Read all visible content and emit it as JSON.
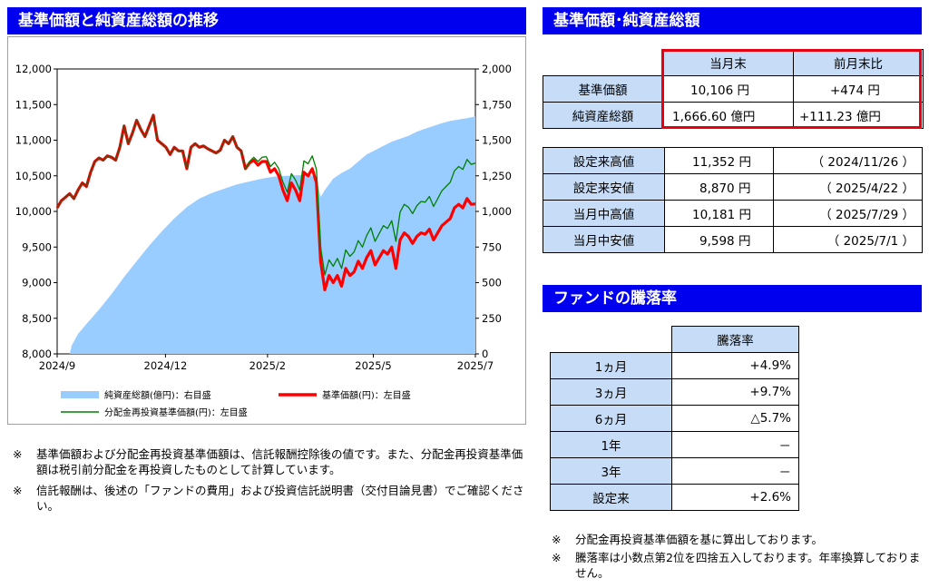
{
  "left_title": "基準価額と純資産総額の推移",
  "right_title": "基準価額･純資産総額",
  "perf_title": "ファンドの騰落率",
  "nav_table": {
    "col1": "当月末",
    "col2": "前月末比",
    "rows": [
      {
        "label": "基準価額",
        "value": "10,106 円",
        "change": "+474 円"
      },
      {
        "label": "純資産総額",
        "value": "1,666.60 億円",
        "change": "+111.23 億円"
      }
    ]
  },
  "highlight_color": "#e60012",
  "hilo_table": [
    {
      "label": "設定来高値",
      "value": "11,352 円",
      "date": "（ 2024/11/26 ）"
    },
    {
      "label": "設定来安値",
      "value": "8,870 円",
      "date": "（ 2025/4/22 ）"
    },
    {
      "label": "当月中高値",
      "value": "10,181 円",
      "date": "（ 2025/7/29 ）"
    },
    {
      "label": "当月中安値",
      "value": "9,598 円",
      "date": "（ 2025/7/1 ）"
    }
  ],
  "perf_table": {
    "header": "騰落率",
    "rows": [
      {
        "label": "1ヵ月",
        "value": "+4.9%"
      },
      {
        "label": "3ヵ月",
        "value": "+9.7%"
      },
      {
        "label": "6ヵ月",
        "value": "△5.7%"
      },
      {
        "label": "1年",
        "value": "－"
      },
      {
        "label": "3年",
        "value": "－"
      },
      {
        "label": "設定来",
        "value": "+2.6%"
      }
    ]
  },
  "notes_left": [
    {
      "mark": "※",
      "text": "基準価額および分配金再投資基準価額は、信託報酬控除後の値です。また、分配金再投資基準価額は税引前分配金を再投資したものとして計算しています。"
    },
    {
      "mark": "※",
      "text": "信託報酬は、後述の「ファンドの費用」および投資信託説明書（交付目論見書）でご確認ください。"
    }
  ],
  "notes_right": [
    {
      "mark": "※",
      "text": "分配金再投資基準価額を基に算出しております。"
    },
    {
      "mark": "※",
      "text": "騰落率は小数点第2位を四捨五入しております。年率換算しておりません。"
    }
  ],
  "chart_data": {
    "type": "line",
    "x_start": "2024/9",
    "x_end": "2025/7",
    "xticks": [
      {
        "label": "2024/9",
        "t": 0
      },
      {
        "label": "2024/12",
        "t": 0.259
      },
      {
        "label": "2025/2",
        "t": 0.503
      },
      {
        "label": "2025/5",
        "t": 0.756
      },
      {
        "label": "2025/7",
        "t": 1
      }
    ],
    "y_left": {
      "min": 8000,
      "max": 12000,
      "ticks": [
        "12,000",
        "11,500",
        "11,000",
        "10,500",
        "10,000",
        "9,500",
        "9,000",
        "8,500",
        "8,000"
      ]
    },
    "y_right": {
      "min": 0,
      "max": 2000,
      "ticks": [
        "2,000",
        "1,750",
        "1,500",
        "1,250",
        "1,000",
        "750",
        "500",
        "250",
        "0"
      ]
    },
    "colors": {
      "area": "#99ccff",
      "nav": "#ff0000",
      "reinvest": "#008000",
      "nav_shadow": "#6b3a10"
    },
    "legend": {
      "area": "純資産総額(億円)：右目盛",
      "nav": "基準価額(円)：左目盛",
      "reinvest": "分配金再投資基準価額(円)：左目盛"
    },
    "series": [
      {
        "name": "基準価額(円)：左目盛",
        "axis": "left",
        "points": [
          [
            0,
            10050
          ],
          [
            0.01,
            10150
          ],
          [
            0.02,
            10200
          ],
          [
            0.03,
            10250
          ],
          [
            0.04,
            10180
          ],
          [
            0.05,
            10300
          ],
          [
            0.06,
            10400
          ],
          [
            0.07,
            10350
          ],
          [
            0.08,
            10550
          ],
          [
            0.09,
            10700
          ],
          [
            0.1,
            10750
          ],
          [
            0.11,
            10720
          ],
          [
            0.12,
            10780
          ],
          [
            0.13,
            10760
          ],
          [
            0.14,
            10720
          ],
          [
            0.15,
            10900
          ],
          [
            0.16,
            11200
          ],
          [
            0.17,
            10950
          ],
          [
            0.18,
            11100
          ],
          [
            0.19,
            11280
          ],
          [
            0.2,
            11150
          ],
          [
            0.21,
            11050
          ],
          [
            0.22,
            11200
          ],
          [
            0.23,
            11352
          ],
          [
            0.24,
            11000
          ],
          [
            0.25,
            10950
          ],
          [
            0.26,
            10900
          ],
          [
            0.27,
            10800
          ],
          [
            0.28,
            10900
          ],
          [
            0.29,
            10850
          ],
          [
            0.3,
            10850
          ],
          [
            0.31,
            10600
          ],
          [
            0.32,
            10900
          ],
          [
            0.33,
            10950
          ],
          [
            0.34,
            10900
          ],
          [
            0.35,
            10920
          ],
          [
            0.36,
            10880
          ],
          [
            0.37,
            10850
          ],
          [
            0.38,
            10820
          ],
          [
            0.39,
            10860
          ],
          [
            0.4,
            11000
          ],
          [
            0.41,
            10950
          ],
          [
            0.42,
            11050
          ],
          [
            0.43,
            10900
          ],
          [
            0.44,
            10850
          ],
          [
            0.45,
            10600
          ],
          [
            0.46,
            10680
          ],
          [
            0.47,
            10720
          ],
          [
            0.48,
            10650
          ],
          [
            0.49,
            10700
          ],
          [
            0.5,
            10700
          ],
          [
            0.51,
            10550
          ],
          [
            0.52,
            10600
          ],
          [
            0.53,
            10500
          ],
          [
            0.54,
            10300
          ],
          [
            0.55,
            10150
          ],
          [
            0.56,
            10400
          ],
          [
            0.57,
            10300
          ],
          [
            0.58,
            10150
          ],
          [
            0.59,
            10550
          ],
          [
            0.6,
            10500
          ],
          [
            0.61,
            10600
          ],
          [
            0.62,
            10400
          ],
          [
            0.63,
            9300
          ],
          [
            0.64,
            8900
          ],
          [
            0.65,
            9100
          ],
          [
            0.66,
            9000
          ],
          [
            0.67,
            9100
          ],
          [
            0.68,
            8950
          ],
          [
            0.69,
            9200
          ],
          [
            0.7,
            9100
          ],
          [
            0.71,
            9150
          ],
          [
            0.72,
            9300
          ],
          [
            0.73,
            9200
          ],
          [
            0.74,
            9350
          ],
          [
            0.75,
            9450
          ],
          [
            0.76,
            9250
          ],
          [
            0.77,
            9350
          ],
          [
            0.78,
            9450
          ],
          [
            0.79,
            9400
          ],
          [
            0.8,
            9500
          ],
          [
            0.81,
            9200
          ],
          [
            0.82,
            9600
          ],
          [
            0.83,
            9700
          ],
          [
            0.84,
            9650
          ],
          [
            0.85,
            9550
          ],
          [
            0.86,
            9650
          ],
          [
            0.87,
            9700
          ],
          [
            0.88,
            9680
          ],
          [
            0.89,
            9750
          ],
          [
            0.9,
            9600
          ],
          [
            0.91,
            9700
          ],
          [
            0.92,
            9800
          ],
          [
            0.93,
            9850
          ],
          [
            0.94,
            9900
          ],
          [
            0.95,
            10050
          ],
          [
            0.96,
            10100
          ],
          [
            0.97,
            10050
          ],
          [
            0.98,
            10181
          ],
          [
            0.99,
            10100
          ],
          [
            1,
            10106
          ]
        ]
      },
      {
        "name": "分配金再投資基準価額(円)：左目盛",
        "axis": "left",
        "points": [
          [
            0,
            10050
          ],
          [
            0.01,
            10150
          ],
          [
            0.02,
            10200
          ],
          [
            0.03,
            10250
          ],
          [
            0.04,
            10180
          ],
          [
            0.05,
            10300
          ],
          [
            0.06,
            10400
          ],
          [
            0.07,
            10350
          ],
          [
            0.08,
            10550
          ],
          [
            0.09,
            10700
          ],
          [
            0.1,
            10750
          ],
          [
            0.11,
            10720
          ],
          [
            0.12,
            10780
          ],
          [
            0.13,
            10760
          ],
          [
            0.14,
            10720
          ],
          [
            0.15,
            10900
          ],
          [
            0.16,
            11200
          ],
          [
            0.17,
            10950
          ],
          [
            0.18,
            11100
          ],
          [
            0.19,
            11280
          ],
          [
            0.2,
            11150
          ],
          [
            0.21,
            11050
          ],
          [
            0.22,
            11200
          ],
          [
            0.23,
            11352
          ],
          [
            0.24,
            11000
          ],
          [
            0.25,
            10950
          ],
          [
            0.26,
            10900
          ],
          [
            0.27,
            10800
          ],
          [
            0.28,
            10900
          ],
          [
            0.29,
            10850
          ],
          [
            0.3,
            10850
          ],
          [
            0.31,
            10600
          ],
          [
            0.32,
            10900
          ],
          [
            0.33,
            10950
          ],
          [
            0.34,
            10900
          ],
          [
            0.35,
            10920
          ],
          [
            0.36,
            10880
          ],
          [
            0.37,
            10850
          ],
          [
            0.38,
            10820
          ],
          [
            0.39,
            10860
          ],
          [
            0.4,
            11000
          ],
          [
            0.41,
            10950
          ],
          [
            0.42,
            11050
          ],
          [
            0.43,
            10900
          ],
          [
            0.44,
            10850
          ],
          [
            0.45,
            10600
          ],
          [
            0.46,
            10700
          ],
          [
            0.47,
            10760
          ],
          [
            0.48,
            10700
          ],
          [
            0.49,
            10760
          ],
          [
            0.5,
            10770
          ],
          [
            0.51,
            10630
          ],
          [
            0.52,
            10690
          ],
          [
            0.53,
            10600
          ],
          [
            0.54,
            10410
          ],
          [
            0.55,
            10270
          ],
          [
            0.56,
            10530
          ],
          [
            0.57,
            10440
          ],
          [
            0.58,
            10300
          ],
          [
            0.59,
            10710
          ],
          [
            0.6,
            10670
          ],
          [
            0.61,
            10780
          ],
          [
            0.62,
            10590
          ],
          [
            0.63,
            9500
          ],
          [
            0.64,
            9110
          ],
          [
            0.65,
            9320
          ],
          [
            0.66,
            9230
          ],
          [
            0.67,
            9340
          ],
          [
            0.68,
            9200
          ],
          [
            0.69,
            9460
          ],
          [
            0.7,
            9370
          ],
          [
            0.71,
            9430
          ],
          [
            0.72,
            9590
          ],
          [
            0.73,
            9500
          ],
          [
            0.74,
            9660
          ],
          [
            0.75,
            9770
          ],
          [
            0.76,
            9580
          ],
          [
            0.77,
            9690
          ],
          [
            0.78,
            9800
          ],
          [
            0.79,
            9760
          ],
          [
            0.8,
            9870
          ],
          [
            0.81,
            9580
          ],
          [
            0.82,
            9990
          ],
          [
            0.83,
            10100
          ],
          [
            0.84,
            10060
          ],
          [
            0.85,
            9970
          ],
          [
            0.86,
            10080
          ],
          [
            0.87,
            10140
          ],
          [
            0.88,
            10130
          ],
          [
            0.89,
            10210
          ],
          [
            0.9,
            10070
          ],
          [
            0.91,
            10180
          ],
          [
            0.92,
            10290
          ],
          [
            0.93,
            10350
          ],
          [
            0.94,
            10410
          ],
          [
            0.95,
            10570
          ],
          [
            0.96,
            10630
          ],
          [
            0.97,
            10590
          ],
          [
            0.98,
            10730
          ],
          [
            0.99,
            10660
          ],
          [
            1,
            10680
          ]
        ]
      },
      {
        "name": "純資産総額(億円)：右目盛",
        "axis": "right",
        "points": [
          [
            0,
            0
          ],
          [
            0.03,
            0
          ],
          [
            0.035,
            60
          ],
          [
            0.05,
            140
          ],
          [
            0.07,
            210
          ],
          [
            0.1,
            310
          ],
          [
            0.13,
            420
          ],
          [
            0.16,
            540
          ],
          [
            0.19,
            650
          ],
          [
            0.22,
            760
          ],
          [
            0.25,
            860
          ],
          [
            0.28,
            950
          ],
          [
            0.31,
            1030
          ],
          [
            0.34,
            1090
          ],
          [
            0.37,
            1130
          ],
          [
            0.4,
            1160
          ],
          [
            0.43,
            1190
          ],
          [
            0.46,
            1210
          ],
          [
            0.49,
            1230
          ],
          [
            0.52,
            1245
          ],
          [
            0.55,
            1250
          ],
          [
            0.58,
            1255
          ],
          [
            0.6,
            1260
          ],
          [
            0.62,
            1240
          ],
          [
            0.63,
            1100
          ],
          [
            0.64,
            1150
          ],
          [
            0.66,
            1230
          ],
          [
            0.68,
            1270
          ],
          [
            0.7,
            1300
          ],
          [
            0.72,
            1350
          ],
          [
            0.74,
            1400
          ],
          [
            0.76,
            1430
          ],
          [
            0.78,
            1460
          ],
          [
            0.8,
            1490
          ],
          [
            0.82,
            1510
          ],
          [
            0.84,
            1530
          ],
          [
            0.86,
            1560
          ],
          [
            0.88,
            1580
          ],
          [
            0.9,
            1600
          ],
          [
            0.92,
            1620
          ],
          [
            0.94,
            1635
          ],
          [
            0.96,
            1645
          ],
          [
            0.98,
            1655
          ],
          [
            1,
            1667
          ]
        ]
      }
    ]
  }
}
